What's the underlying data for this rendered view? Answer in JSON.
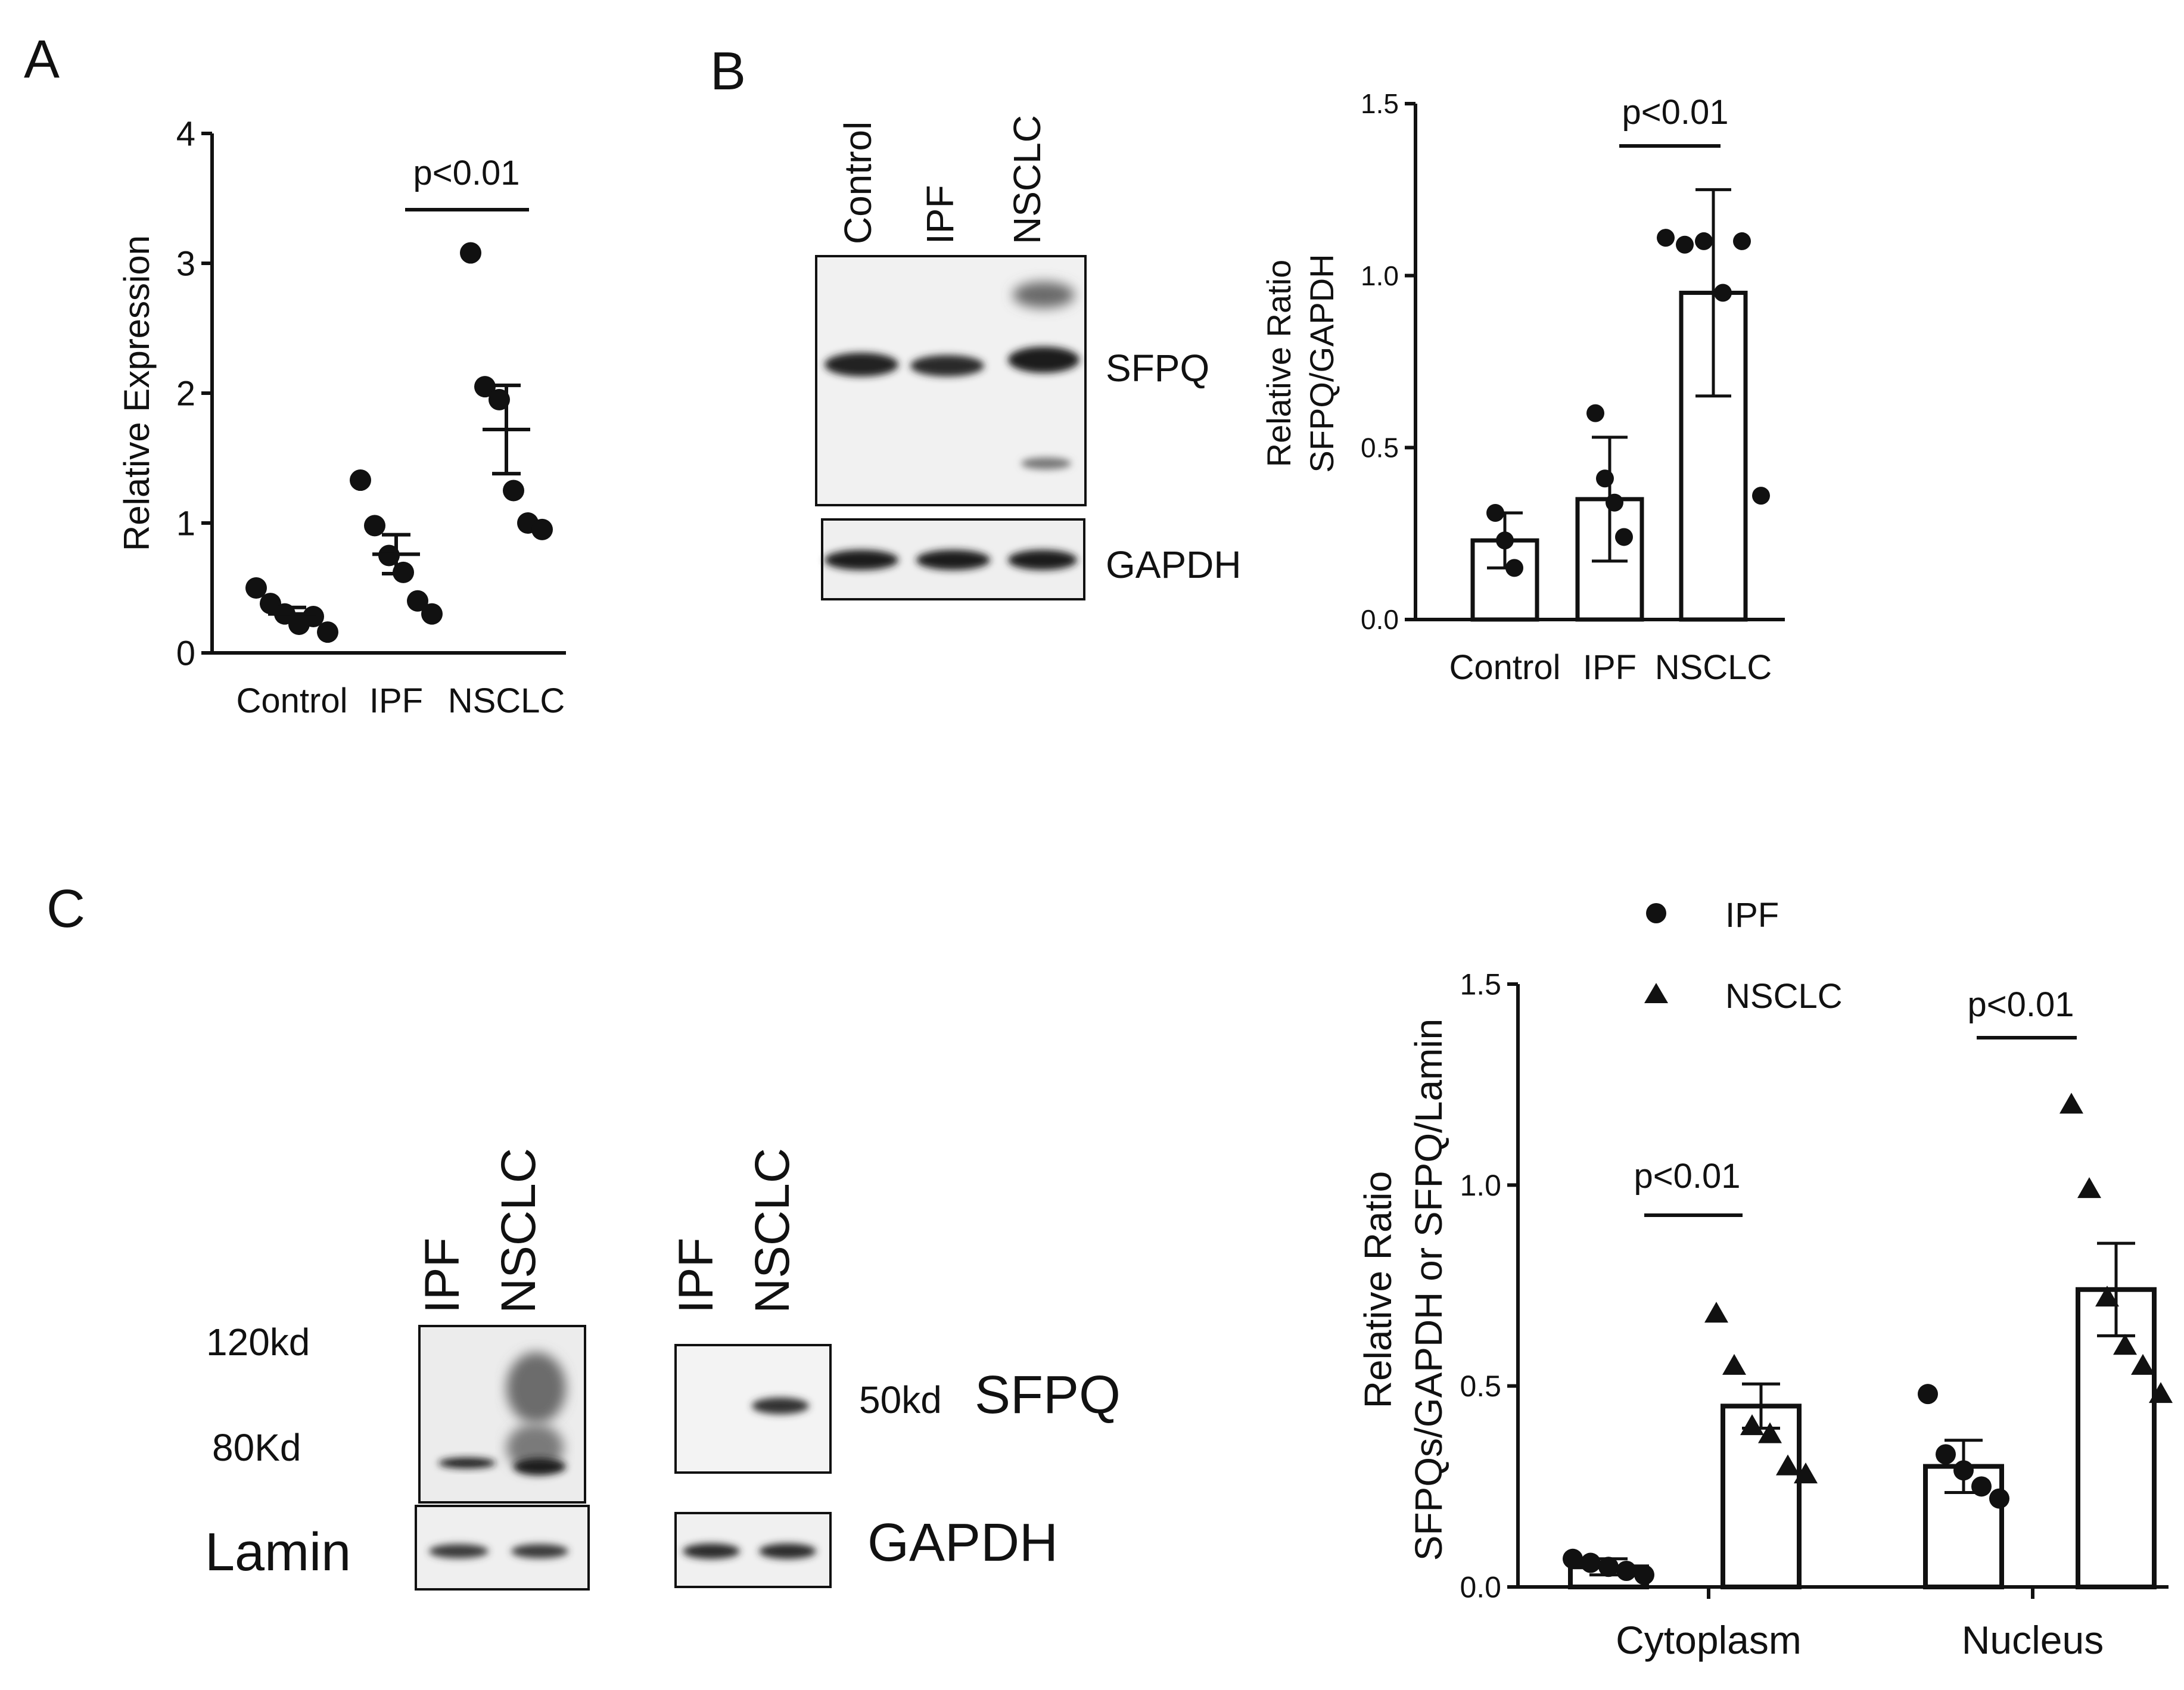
{
  "panels": {
    "A": {
      "letter": "A",
      "pvalue": "p<0.01",
      "chart_data": {
        "type": "scatter",
        "ylabel": "Relative Expression",
        "ylim": [
          0,
          4
        ],
        "yticks": [
          "0",
          "1",
          "2",
          "3",
          "4"
        ],
        "categories": [
          "Control",
          "IPF",
          "NSCLC"
        ],
        "points": [
          [
            0.5,
            0.38,
            0.3,
            0.22,
            0.28,
            0.16
          ],
          [
            1.33,
            0.98,
            0.75,
            0.62,
            0.4,
            0.3
          ],
          [
            3.08,
            2.05,
            1.95,
            1.25,
            1.0,
            0.95
          ]
        ],
        "mean": [
          0.3,
          0.76,
          1.72
        ],
        "sem": [
          0.05,
          0.15,
          0.34
        ]
      }
    },
    "B": {
      "letter": "B",
      "pvalue": "p<0.01",
      "blot": {
        "lanes": [
          "Control",
          "IPF",
          "NSCLC"
        ],
        "labels": [
          "SFPQ",
          "GAPDH"
        ]
      },
      "chart_data": {
        "type": "bar",
        "ylabel": [
          "Relative Ratio",
          "SFPQ/GAPDH"
        ],
        "ylim": [
          0,
          1.5
        ],
        "yticks": [
          "0.0",
          "0.5",
          "1.0",
          "1.5"
        ],
        "categories": [
          "Control",
          "IPF",
          "NSCLC"
        ],
        "values": [
          0.23,
          0.35,
          0.95
        ],
        "sd": [
          0.08,
          0.18,
          0.3
        ],
        "points": [
          [
            0.31,
            0.23,
            0.15
          ],
          [
            0.6,
            0.41,
            0.34,
            0.24
          ],
          [
            1.11,
            1.09,
            1.1,
            0.95,
            1.1,
            0.36
          ]
        ]
      }
    },
    "C": {
      "letter": "C",
      "blot_left": {
        "lanes": [
          "IPF",
          "NSCLC"
        ],
        "markers": [
          "120kd",
          "80Kd"
        ],
        "labels": [
          "Lamin"
        ]
      },
      "blot_right": {
        "lanes": [
          "IPF",
          "NSCLC"
        ],
        "marker": "50kd",
        "labels": [
          "SFPQ",
          "GAPDH"
        ]
      },
      "chart_data": {
        "type": "bar",
        "ylabel": [
          "Relative Ratio",
          "SFPQs/GAPDH or SFPQ/Lamin"
        ],
        "ylim": [
          0,
          1.5
        ],
        "yticks": [
          "0.0",
          "0.5",
          "1.0",
          "1.5"
        ],
        "categories": [
          "Cytoplasm",
          "Nucleus"
        ],
        "legend": [
          "IPF",
          "NSCLC"
        ],
        "pvalues": [
          "p<0.01",
          "p<0.01"
        ],
        "series": [
          {
            "name": "IPF",
            "values": [
              0.05,
              0.3
            ],
            "sem": [
              0.02,
              0.065
            ],
            "points": [
              [
                0.07,
                0.06,
                0.05,
                0.04,
                0.03
              ],
              [
                0.48,
                0.33,
                0.29,
                0.25,
                0.22
              ]
            ]
          },
          {
            "name": "NSCLC",
            "values": [
              0.45,
              0.74
            ],
            "sem": [
              0.055,
              0.115
            ],
            "points": [
              [
                0.68,
                0.55,
                0.4,
                0.38,
                0.3,
                0.28
              ],
              [
                1.2,
                0.99,
                0.72,
                0.6,
                0.55,
                0.48
              ]
            ]
          }
        ]
      }
    }
  }
}
